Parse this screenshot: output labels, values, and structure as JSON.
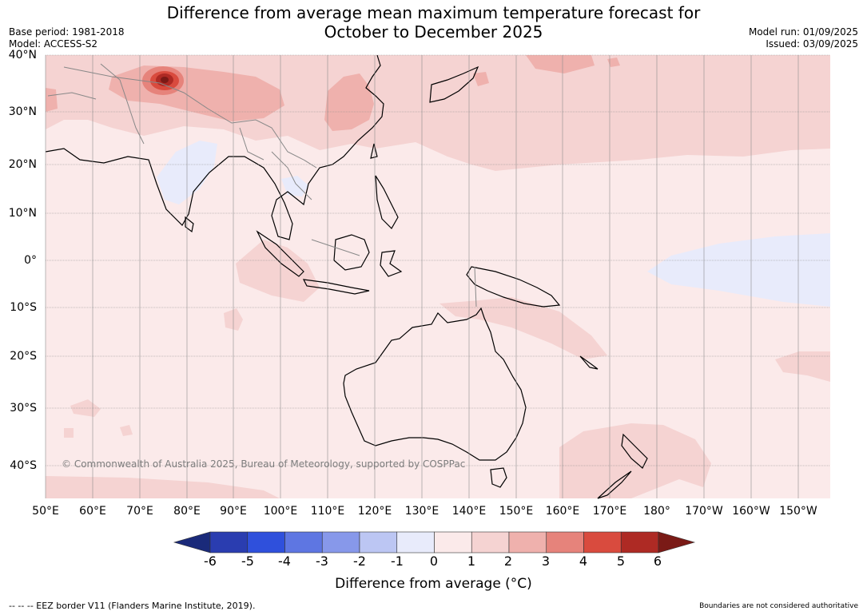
{
  "title_line1": "Difference from average mean maximum temperature forecast for",
  "title_line2": "October to December 2025",
  "meta_left": {
    "base_period": "Base period: 1981-2018",
    "model": "Model: ACCESS-S2"
  },
  "meta_right": {
    "model_run": "Model run: 01/09/2025",
    "issued": "Issued: 03/09/2025"
  },
  "lat_labels": [
    "40°N",
    "30°N",
    "20°N",
    "10°N",
    "0°",
    "10°S",
    "20°S",
    "30°S",
    "40°S"
  ],
  "lon_labels": [
    "50°E",
    "60°E",
    "70°E",
    "80°E",
    "90°E",
    "100°E",
    "110°E",
    "120°E",
    "130°E",
    "140°E",
    "150°E",
    "160°E",
    "170°E",
    "180°",
    "170°W",
    "160°W",
    "150°W"
  ],
  "copyright": "© Commonwealth of Australia 2025, Bureau of Meteorology, supported by COSPPac",
  "colorbar": {
    "ticks": [
      "-6",
      "-5",
      "-4",
      "-3",
      "-2",
      "-1",
      "0",
      "1",
      "2",
      "3",
      "4",
      "5",
      "6"
    ],
    "colors": [
      "#1a2a7a",
      "#2a3db0",
      "#2f50dc",
      "#5e76e2",
      "#8798ea",
      "#bcc6f3",
      "#e8ebfb",
      "#fbeaea",
      "#f5d3d2",
      "#efb1ad",
      "#e6837b",
      "#d94b3e",
      "#ae2a24",
      "#7a1a16"
    ],
    "label": "Difference from average (°C)"
  },
  "footer_left": "--  --  -- EEZ border V11 (Flanders Marine Institute, 2019).",
  "footer_right": "Boundaries are not considered authoritative"
}
